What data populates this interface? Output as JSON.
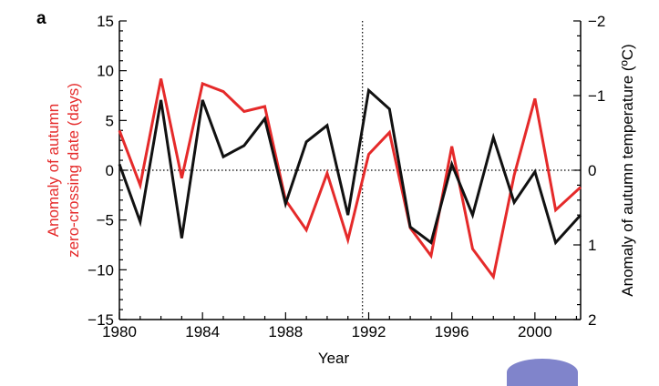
{
  "panel_label": "a",
  "colors": {
    "red_series": "#e52a2a",
    "black_series": "#111111",
    "axis": "#000000"
  },
  "chart_data": {
    "type": "line",
    "title": "",
    "xlabel": "Year",
    "ylabel_left": [
      "Anomaly of autumn",
      "zero-crossing date (days)"
    ],
    "ylabel_right": "Anomaly of autumn temperature (ºC)",
    "xlim": [
      1980,
      2002.2
    ],
    "ylim_left": [
      -15,
      15
    ],
    "ylim_right": [
      2,
      -2
    ],
    "right_axis_inverted": true,
    "x_ticks": [
      1980,
      1984,
      1988,
      1992,
      1996,
      2000
    ],
    "y_ticks_left": [
      -15,
      -10,
      -5,
      0,
      5,
      10,
      15
    ],
    "y_ticks_right": [
      2,
      1,
      0,
      -1,
      -2
    ],
    "y_tick_labels_left": [
      "−15",
      "−10",
      "−5",
      "0",
      "5",
      "10",
      "15"
    ],
    "y_tick_labels_right": [
      "2",
      "1",
      "0",
      "−1",
      "−2"
    ],
    "reference_lines": {
      "horizontal_y": 0,
      "vertical_x": 1991.7
    },
    "series": [
      {
        "axis": "left",
        "color": "#e52a2a",
        "x": [
          1980,
          1981,
          1982,
          1983,
          1984,
          1985,
          1986,
          1987,
          1988,
          1989,
          1990,
          1991,
          1992,
          1993,
          1994,
          1995,
          1996,
          1997,
          1998,
          1999,
          2000,
          2001,
          2002.2
        ],
        "values": [
          4.0,
          -1.5,
          9.2,
          -0.8,
          8.7,
          7.9,
          5.9,
          6.4,
          -3.0,
          -6.0,
          -0.3,
          -7.0,
          1.6,
          3.8,
          -5.8,
          -8.6,
          2.4,
          -7.9,
          -10.7,
          -0.5,
          7.2,
          -4.0,
          -1.7
        ]
      },
      {
        "axis": "right",
        "color": "#111111",
        "x": [
          1980,
          1981,
          1982,
          1983,
          1984,
          1985,
          1986,
          1987,
          1988,
          1989,
          1990,
          1991,
          1992,
          1993,
          1994,
          1995,
          1996,
          1997,
          1998,
          1999,
          2000,
          2001,
          2002.2
        ],
        "values": [
          -0.08,
          0.69,
          -0.94,
          0.91,
          -0.94,
          -0.18,
          -0.33,
          -0.69,
          0.45,
          -0.38,
          -0.6,
          0.6,
          -1.07,
          -0.82,
          0.76,
          0.97,
          -0.08,
          0.6,
          -0.44,
          0.43,
          0.02,
          0.97,
          0.6
        ]
      }
    ]
  }
}
